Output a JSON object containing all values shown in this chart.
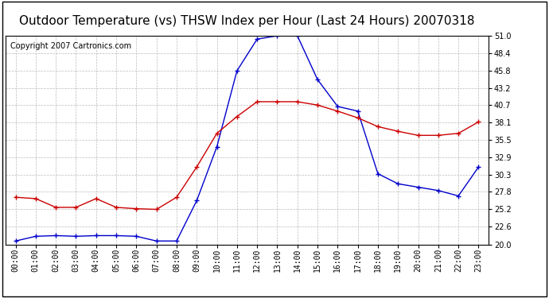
{
  "title": "Outdoor Temperature (vs) THSW Index per Hour (Last 24 Hours) 20070318",
  "copyright": "Copyright 2007 Cartronics.com",
  "hours": [
    "00:00",
    "01:00",
    "02:00",
    "03:00",
    "04:00",
    "05:00",
    "06:00",
    "07:00",
    "08:00",
    "09:00",
    "10:00",
    "11:00",
    "12:00",
    "13:00",
    "14:00",
    "15:00",
    "16:00",
    "17:00",
    "18:00",
    "19:00",
    "20:00",
    "21:00",
    "22:00",
    "23:00"
  ],
  "thsw": [
    20.5,
    21.2,
    21.3,
    21.2,
    21.3,
    21.3,
    21.2,
    20.5,
    20.5,
    26.5,
    34.5,
    45.8,
    50.5,
    51.0,
    51.0,
    44.5,
    40.5,
    39.8,
    30.5,
    29.0,
    28.5,
    28.0,
    27.2,
    31.5
  ],
  "temp": [
    27.0,
    26.8,
    25.5,
    25.5,
    26.8,
    25.5,
    25.3,
    25.2,
    27.0,
    31.5,
    36.5,
    39.0,
    41.2,
    41.2,
    41.2,
    40.7,
    39.8,
    38.8,
    37.5,
    36.8,
    36.2,
    36.2,
    36.5,
    38.2
  ],
  "ylim": [
    20.0,
    51.0
  ],
  "yticks": [
    20.0,
    22.6,
    25.2,
    27.8,
    30.3,
    32.9,
    35.5,
    38.1,
    40.7,
    43.2,
    45.8,
    48.4,
    51.0
  ],
  "thsw_color": "#0000cc",
  "temp_color": "#cc0000",
  "bg_color": "#ffffff",
  "plot_bg": "#ffffff",
  "grid_color": "#aaaaaa",
  "title_fontsize": 11,
  "copyright_fontsize": 7
}
